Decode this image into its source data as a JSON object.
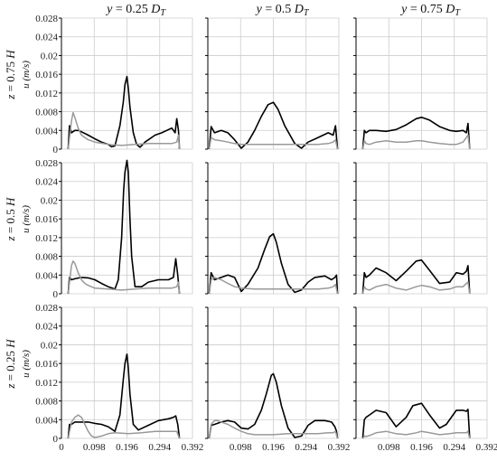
{
  "columns": [
    {
      "italic": "y",
      "rest": " = 0.25 ",
      "sym": "D",
      "sub": "T"
    },
    {
      "italic": "y",
      "rest": " = 0.5 ",
      "sym": "D",
      "sub": "T"
    },
    {
      "italic": "y",
      "rest": " = 0.75 ",
      "sym": "D",
      "sub": "T"
    }
  ],
  "rows": [
    {
      "italic": "z",
      "rest": " = 0.75 ",
      "sym": "H"
    },
    {
      "italic": "z",
      "rest": " = 0.5 ",
      "sym": "H"
    },
    {
      "italic": "z",
      "rest": " = 0.25 ",
      "sym": "H"
    }
  ],
  "y_unit_label": "u (m/s)",
  "colors": {
    "black_series": "#000000",
    "gray_series": "#999999",
    "grid": "#cccccc"
  },
  "chart_data": {
    "type": "line",
    "grid": true,
    "xlim": [
      0,
      0.392
    ],
    "ylim": [
      0,
      0.028
    ],
    "xticks": [
      "0",
      "0.098",
      "0.196",
      "0.294",
      "0.392"
    ],
    "xtick_values": [
      0,
      0.098,
      0.196,
      0.294,
      0.392
    ],
    "yticks": [
      "0",
      "0.004",
      "0.008",
      "0.012",
      "0.016",
      "0.02",
      "0.024",
      "0.028"
    ],
    "ytick_values": [
      0,
      0.004,
      0.008,
      0.012,
      0.016,
      0.02,
      0.024,
      0.028
    ],
    "panels": [
      {
        "row": 0,
        "col": 0,
        "series": [
          {
            "color": "#000000",
            "x": [
              0.02,
              0.024,
              0.03,
              0.04,
              0.05,
              0.06,
              0.08,
              0.1,
              0.12,
              0.14,
              0.15,
              0.16,
              0.175,
              0.185,
              0.19,
              0.196,
              0.2,
              0.205,
              0.215,
              0.225,
              0.235,
              0.25,
              0.28,
              0.3,
              0.33,
              0.34,
              0.345,
              0.35,
              0.353
            ],
            "y": [
              0,
              0.005,
              0.0035,
              0.004,
              0.004,
              0.0037,
              0.003,
              0.0022,
              0.0015,
              0.001,
              0.0005,
              0.0007,
              0.005,
              0.01,
              0.0138,
              0.0155,
              0.013,
              0.009,
              0.0035,
              0.001,
              0.0004,
              0.0015,
              0.003,
              0.0035,
              0.0045,
              0.0035,
              0.0065,
              0.004,
              0
            ]
          },
          {
            "color": "#999999",
            "x": [
              0.02,
              0.03,
              0.035,
              0.04,
              0.05,
              0.06,
              0.07,
              0.08,
              0.1,
              0.14,
              0.18,
              0.22,
              0.26,
              0.3,
              0.33,
              0.345,
              0.35,
              0.353
            ],
            "y": [
              0,
              0.006,
              0.0078,
              0.0068,
              0.0045,
              0.003,
              0.0025,
              0.002,
              0.0015,
              0.001,
              0.0008,
              0.001,
              0.0012,
              0.0012,
              0.0012,
              0.0015,
              0.003,
              0
            ]
          }
        ]
      },
      {
        "row": 0,
        "col": 1,
        "series": [
          {
            "color": "#000000",
            "x": [
              0.004,
              0.01,
              0.02,
              0.04,
              0.06,
              0.08,
              0.1,
              0.12,
              0.14,
              0.16,
              0.18,
              0.196,
              0.21,
              0.23,
              0.26,
              0.28,
              0.3,
              0.33,
              0.36,
              0.375,
              0.382,
              0.388
            ],
            "y": [
              0,
              0.0048,
              0.0035,
              0.004,
              0.0035,
              0.002,
              0.0002,
              0.0015,
              0.004,
              0.007,
              0.0095,
              0.01,
              0.0085,
              0.005,
              0.0012,
              0.0002,
              0.0015,
              0.0025,
              0.0035,
              0.003,
              0.005,
              0
            ]
          },
          {
            "color": "#999999",
            "x": [
              0.004,
              0.01,
              0.02,
              0.04,
              0.06,
              0.08,
              0.1,
              0.14,
              0.196,
              0.24,
              0.28,
              0.33,
              0.36,
              0.375,
              0.382,
              0.388
            ],
            "y": [
              0,
              0.0025,
              0.002,
              0.0018,
              0.0015,
              0.0012,
              0.001,
              0.001,
              0.001,
              0.001,
              0.001,
              0.001,
              0.0012,
              0.0015,
              0.002,
              0
            ]
          }
        ]
      },
      {
        "row": 0,
        "col": 2,
        "series": [
          {
            "color": "#000000",
            "x": [
              0.02,
              0.025,
              0.03,
              0.04,
              0.06,
              0.09,
              0.12,
              0.15,
              0.18,
              0.196,
              0.22,
              0.25,
              0.28,
              0.3,
              0.32,
              0.33,
              0.335,
              0.34
            ],
            "y": [
              0,
              0.004,
              0.0035,
              0.004,
              0.004,
              0.0038,
              0.0042,
              0.0052,
              0.0065,
              0.0068,
              0.0062,
              0.0048,
              0.004,
              0.0038,
              0.004,
              0.0035,
              0.0055,
              0
            ]
          },
          {
            "color": "#999999",
            "x": [
              0.02,
              0.025,
              0.03,
              0.04,
              0.06,
              0.09,
              0.12,
              0.15,
              0.18,
              0.196,
              0.22,
              0.25,
              0.28,
              0.3,
              0.32,
              0.33,
              0.335,
              0.34
            ],
            "y": [
              0,
              0.0018,
              0.0012,
              0.001,
              0.0015,
              0.0018,
              0.0015,
              0.0015,
              0.0018,
              0.0018,
              0.0015,
              0.0012,
              0.001,
              0.001,
              0.0015,
              0.0025,
              0.003,
              0
            ]
          }
        ]
      },
      {
        "row": 1,
        "col": 0,
        "series": [
          {
            "color": "#000000",
            "x": [
              0.02,
              0.024,
              0.03,
              0.04,
              0.06,
              0.08,
              0.1,
              0.12,
              0.14,
              0.16,
              0.17,
              0.18,
              0.186,
              0.19,
              0.196,
              0.2,
              0.205,
              0.21,
              0.22,
              0.24,
              0.26,
              0.29,
              0.32,
              0.335,
              0.342,
              0.348,
              0.353
            ],
            "y": [
              0,
              0.0035,
              0.003,
              0.0032,
              0.0035,
              0.0034,
              0.003,
              0.0022,
              0.0015,
              0.001,
              0.003,
              0.012,
              0.022,
              0.026,
              0.0285,
              0.026,
              0.016,
              0.008,
              0.0015,
              0.0015,
              0.0025,
              0.003,
              0.003,
              0.0035,
              0.0075,
              0.004,
              0
            ]
          },
          {
            "color": "#999999",
            "x": [
              0.02,
              0.03,
              0.035,
              0.04,
              0.05,
              0.06,
              0.07,
              0.08,
              0.1,
              0.14,
              0.18,
              0.22,
              0.26,
              0.3,
              0.33,
              0.345,
              0.35,
              0.353
            ],
            "y": [
              0,
              0.006,
              0.007,
              0.0065,
              0.0045,
              0.003,
              0.0022,
              0.0018,
              0.0012,
              0.001,
              0.0008,
              0.001,
              0.0012,
              0.0012,
              0.0012,
              0.0015,
              0.0025,
              0
            ]
          }
        ]
      },
      {
        "row": 1,
        "col": 1,
        "series": [
          {
            "color": "#000000",
            "x": [
              0.004,
              0.01,
              0.02,
              0.04,
              0.06,
              0.08,
              0.1,
              0.12,
              0.15,
              0.17,
              0.185,
              0.196,
              0.205,
              0.22,
              0.24,
              0.26,
              0.28,
              0.3,
              0.32,
              0.35,
              0.37,
              0.38,
              0.385,
              0.388
            ],
            "y": [
              0,
              0.0045,
              0.003,
              0.0035,
              0.004,
              0.0035,
              0.0005,
              0.002,
              0.0055,
              0.0095,
              0.0122,
              0.0128,
              0.011,
              0.0065,
              0.002,
              0.0003,
              0.0008,
              0.0025,
              0.0035,
              0.0038,
              0.003,
              0.0035,
              0.004,
              0
            ]
          },
          {
            "color": "#999999",
            "x": [
              0.004,
              0.01,
              0.02,
              0.04,
              0.06,
              0.08,
              0.1,
              0.14,
              0.196,
              0.24,
              0.28,
              0.33,
              0.36,
              0.375,
              0.382,
              0.388
            ],
            "y": [
              0,
              0.003,
              0.0035,
              0.003,
              0.0022,
              0.0015,
              0.0012,
              0.001,
              0.001,
              0.001,
              0.001,
              0.001,
              0.0012,
              0.0015,
              0.002,
              0
            ]
          }
        ]
      },
      {
        "row": 1,
        "col": 2,
        "series": [
          {
            "color": "#000000",
            "x": [
              0.02,
              0.025,
              0.03,
              0.04,
              0.06,
              0.09,
              0.12,
              0.15,
              0.18,
              0.196,
              0.22,
              0.25,
              0.28,
              0.3,
              0.32,
              0.33,
              0.335,
              0.34
            ],
            "y": [
              0,
              0.0045,
              0.0035,
              0.004,
              0.0055,
              0.0045,
              0.0028,
              0.0048,
              0.007,
              0.0072,
              0.005,
              0.0022,
              0.0025,
              0.0045,
              0.0042,
              0.0048,
              0.006,
              0
            ]
          },
          {
            "color": "#999999",
            "x": [
              0.02,
              0.025,
              0.03,
              0.04,
              0.06,
              0.09,
              0.12,
              0.15,
              0.18,
              0.196,
              0.22,
              0.25,
              0.28,
              0.3,
              0.32,
              0.33,
              0.335,
              0.34
            ],
            "y": [
              0,
              0.0015,
              0.001,
              0.0008,
              0.0015,
              0.002,
              0.0012,
              0.0008,
              0.0015,
              0.0018,
              0.0015,
              0.0008,
              0.001,
              0.0015,
              0.0015,
              0.0022,
              0.0025,
              0
            ]
          }
        ]
      },
      {
        "row": 2,
        "col": 0,
        "series": [
          {
            "color": "#000000",
            "x": [
              0.02,
              0.024,
              0.03,
              0.04,
              0.06,
              0.08,
              0.1,
              0.12,
              0.14,
              0.16,
              0.175,
              0.185,
              0.19,
              0.196,
              0.2,
              0.205,
              0.215,
              0.23,
              0.26,
              0.29,
              0.32,
              0.335,
              0.342,
              0.348,
              0.353
            ],
            "y": [
              0,
              0.003,
              0.003,
              0.0035,
              0.0035,
              0.0035,
              0.0032,
              0.003,
              0.0025,
              0.0015,
              0.005,
              0.0125,
              0.016,
              0.018,
              0.015,
              0.0095,
              0.003,
              0.0018,
              0.0028,
              0.0038,
              0.0042,
              0.0045,
              0.0048,
              0.003,
              0
            ]
          },
          {
            "color": "#999999",
            "x": [
              0.02,
              0.03,
              0.04,
              0.05,
              0.06,
              0.07,
              0.08,
              0.09,
              0.1,
              0.12,
              0.14,
              0.16,
              0.2,
              0.24,
              0.28,
              0.32,
              0.345,
              0.353
            ],
            "y": [
              0,
              0.0035,
              0.0045,
              0.005,
              0.0045,
              0.003,
              0.0015,
              0.0005,
              0.0002,
              0.0005,
              0.001,
              0.0012,
              0.001,
              0.0012,
              0.0015,
              0.0015,
              0.0015,
              0
            ]
          }
        ]
      },
      {
        "row": 2,
        "col": 1,
        "series": [
          {
            "color": "#000000",
            "x": [
              0.004,
              0.01,
              0.02,
              0.04,
              0.06,
              0.08,
              0.1,
              0.12,
              0.14,
              0.16,
              0.175,
              0.19,
              0.196,
              0.205,
              0.22,
              0.24,
              0.26,
              0.28,
              0.3,
              0.32,
              0.35,
              0.37,
              0.38,
              0.385,
              0.388
            ],
            "y": [
              0,
              0.0028,
              0.003,
              0.0035,
              0.0038,
              0.0035,
              0.0022,
              0.002,
              0.003,
              0.006,
              0.0095,
              0.0135,
              0.0138,
              0.012,
              0.007,
              0.0022,
              0.0002,
              0.0005,
              0.0028,
              0.0038,
              0.0038,
              0.0035,
              0.0025,
              0.0015,
              0
            ]
          },
          {
            "color": "#999999",
            "x": [
              0.004,
              0.01,
              0.02,
              0.03,
              0.04,
              0.06,
              0.08,
              0.1,
              0.12,
              0.14,
              0.196,
              0.24,
              0.28,
              0.33,
              0.36,
              0.375,
              0.382,
              0.388
            ],
            "y": [
              0,
              0.003,
              0.0038,
              0.0038,
              0.0035,
              0.003,
              0.0022,
              0.0015,
              0.001,
              0.0008,
              0.0008,
              0.001,
              0.001,
              0.001,
              0.0012,
              0.0012,
              0.0015,
              0
            ]
          }
        ]
      },
      {
        "row": 2,
        "col": 2,
        "series": [
          {
            "color": "#000000",
            "x": [
              0.02,
              0.025,
              0.03,
              0.04,
              0.06,
              0.09,
              0.12,
              0.15,
              0.17,
              0.196,
              0.22,
              0.25,
              0.27,
              0.3,
              0.32,
              0.33,
              0.335,
              0.34
            ],
            "y": [
              0,
              0.004,
              0.0045,
              0.005,
              0.006,
              0.0055,
              0.0025,
              0.0045,
              0.007,
              0.0075,
              0.005,
              0.0022,
              0.003,
              0.006,
              0.006,
              0.0058,
              0.0062,
              0
            ]
          },
          {
            "color": "#999999",
            "x": [
              0.02,
              0.025,
              0.03,
              0.04,
              0.06,
              0.09,
              0.12,
              0.15,
              0.18,
              0.196,
              0.22,
              0.25,
              0.28,
              0.3,
              0.32,
              0.33,
              0.335,
              0.34
            ],
            "y": [
              0,
              0.0005,
              0.0004,
              0.0006,
              0.0012,
              0.0015,
              0.001,
              0.0008,
              0.0012,
              0.0015,
              0.0012,
              0.0008,
              0.001,
              0.0012,
              0.0012,
              0.0012,
              0.0015,
              0
            ]
          }
        ]
      }
    ]
  }
}
